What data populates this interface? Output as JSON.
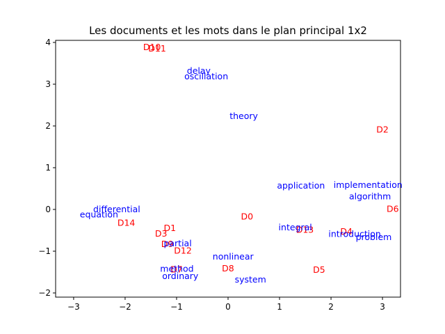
{
  "chart_data": {
    "type": "scatter",
    "title": "Les documents et les mots dans le plan principal 1x2",
    "xlabel": "",
    "ylabel": "",
    "xlim": [
      -3.35,
      3.35
    ],
    "ylim": [
      -2.1,
      4.05
    ],
    "xticks": [
      -3,
      -2,
      -1,
      0,
      1,
      2,
      3
    ],
    "yticks": [
      -2,
      -1,
      0,
      1,
      2,
      3,
      4
    ],
    "grid": false,
    "legend": "none",
    "colors": {
      "documents": "#ff0000",
      "words": "#0000ff"
    },
    "series": [
      {
        "kind": "documents",
        "points": [
          {
            "label": "D10",
            "x": -1.65,
            "y": 3.82
          },
          {
            "label": "D11",
            "x": -1.55,
            "y": 3.78
          },
          {
            "label": "D2",
            "x": 2.88,
            "y": 1.84
          },
          {
            "label": "D6",
            "x": 3.08,
            "y": -0.06
          },
          {
            "label": "D0",
            "x": 0.25,
            "y": -0.24
          },
          {
            "label": "D14",
            "x": -2.15,
            "y": -0.39
          },
          {
            "label": "D1",
            "x": -1.25,
            "y": -0.52
          },
          {
            "label": "D3",
            "x": -1.42,
            "y": -0.65
          },
          {
            "label": "D13",
            "x": 1.32,
            "y": -0.56
          },
          {
            "label": "D4",
            "x": 2.18,
            "y": -0.6
          },
          {
            "label": "D9",
            "x": -1.3,
            "y": -0.9
          },
          {
            "label": "D12",
            "x": -1.05,
            "y": -1.06
          },
          {
            "label": "D7",
            "x": -1.12,
            "y": -1.51
          },
          {
            "label": "D8",
            "x": -0.12,
            "y": -1.48
          },
          {
            "label": "D5",
            "x": 1.65,
            "y": -1.52
          }
        ]
      },
      {
        "kind": "words",
        "points": [
          {
            "label": "delay",
            "x": -0.8,
            "y": 3.25
          },
          {
            "label": "oscillation",
            "x": -0.85,
            "y": 3.12
          },
          {
            "label": "theory",
            "x": 0.03,
            "y": 2.17
          },
          {
            "label": "application",
            "x": 0.95,
            "y": 0.5
          },
          {
            "label": "implementation",
            "x": 2.05,
            "y": 0.52
          },
          {
            "label": "algorithm",
            "x": 2.35,
            "y": 0.24
          },
          {
            "label": "differential",
            "x": -2.62,
            "y": -0.07
          },
          {
            "label": "equation",
            "x": -2.88,
            "y": -0.19
          },
          {
            "label": "integral",
            "x": 0.98,
            "y": -0.5
          },
          {
            "label": "introduction",
            "x": 1.95,
            "y": -0.66
          },
          {
            "label": "problem",
            "x": 2.48,
            "y": -0.73
          },
          {
            "label": "partial",
            "x": -1.25,
            "y": -0.88
          },
          {
            "label": "nonlinear",
            "x": -0.3,
            "y": -1.2
          },
          {
            "label": "method",
            "x": -1.32,
            "y": -1.49
          },
          {
            "label": "ordinary",
            "x": -1.28,
            "y": -1.67
          },
          {
            "label": "system",
            "x": 0.13,
            "y": -1.75
          }
        ]
      }
    ]
  }
}
